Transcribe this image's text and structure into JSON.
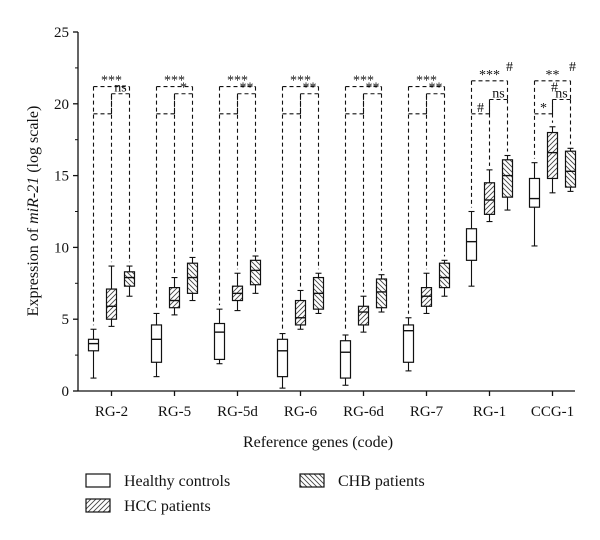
{
  "chart_data": {
    "type": "box",
    "xlabel": "Reference genes (code)",
    "ylabel_prefix": "Expression of ",
    "ylabel_italic": "miR-21",
    "ylabel_suffix": " (log scale)",
    "ylim": [
      0,
      25
    ],
    "yticks": [
      "0",
      "5",
      "10",
      "15",
      "20",
      "25"
    ],
    "categories": [
      "RG-2",
      "RG-5",
      "RG-5d",
      "RG-6",
      "RG-6d",
      "RG-7",
      "RG-1",
      "CCG-1"
    ],
    "series": [
      {
        "name": "Healthy controls",
        "pattern": "none",
        "boxes": [
          {
            "min": 0.9,
            "q1": 2.8,
            "median": 3.3,
            "q3": 3.6,
            "max": 4.3
          },
          {
            "min": 1.0,
            "q1": 2.0,
            "median": 3.6,
            "q3": 4.6,
            "max": 5.4
          },
          {
            "min": 1.9,
            "q1": 2.2,
            "median": 4.1,
            "q3": 4.7,
            "max": 5.7
          },
          {
            "min": 0.2,
            "q1": 1.0,
            "median": 2.8,
            "q3": 3.6,
            "max": 4.0
          },
          {
            "min": 0.4,
            "q1": 0.9,
            "median": 2.7,
            "q3": 3.5,
            "max": 3.9
          },
          {
            "min": 1.4,
            "q1": 2.0,
            "median": 4.2,
            "q3": 4.6,
            "max": 5.1
          },
          {
            "min": 7.3,
            "q1": 9.1,
            "median": 10.4,
            "q3": 11.3,
            "max": 12.5
          },
          {
            "min": 10.1,
            "q1": 12.8,
            "median": 13.4,
            "q3": 14.8,
            "max": 15.9
          }
        ]
      },
      {
        "name": "HCC patients",
        "pattern": "diag-left",
        "boxes": [
          {
            "min": 4.5,
            "q1": 5.0,
            "median": 5.9,
            "q3": 7.1,
            "max": 8.7
          },
          {
            "min": 5.3,
            "q1": 5.8,
            "median": 6.3,
            "q3": 7.2,
            "max": 7.9
          },
          {
            "min": 5.6,
            "q1": 6.3,
            "median": 6.8,
            "q3": 7.3,
            "max": 8.2
          },
          {
            "min": 4.3,
            "q1": 4.6,
            "median": 5.1,
            "q3": 6.3,
            "max": 7.0
          },
          {
            "min": 4.1,
            "q1": 4.6,
            "median": 5.5,
            "q3": 5.9,
            "max": 6.6
          },
          {
            "min": 5.4,
            "q1": 5.9,
            "median": 6.6,
            "q3": 7.2,
            "max": 8.2
          },
          {
            "min": 11.8,
            "q1": 12.3,
            "median": 13.3,
            "q3": 14.5,
            "max": 15.4
          },
          {
            "min": 13.8,
            "q1": 14.8,
            "median": 16.6,
            "q3": 18.0,
            "max": 18.4
          }
        ]
      },
      {
        "name": "CHB patients",
        "pattern": "diag-right",
        "boxes": [
          {
            "min": 6.6,
            "q1": 7.3,
            "median": 7.9,
            "q3": 8.3,
            "max": 8.7
          },
          {
            "min": 6.3,
            "q1": 6.8,
            "median": 7.9,
            "q3": 8.9,
            "max": 9.3
          },
          {
            "min": 6.8,
            "q1": 7.4,
            "median": 8.4,
            "q3": 9.1,
            "max": 9.4
          },
          {
            "min": 5.4,
            "q1": 5.7,
            "median": 6.8,
            "q3": 7.9,
            "max": 8.2
          },
          {
            "min": 5.5,
            "q1": 5.8,
            "median": 6.9,
            "q3": 7.8,
            "max": 8.1
          },
          {
            "min": 6.6,
            "q1": 7.2,
            "median": 7.9,
            "q3": 8.9,
            "max": 9.1
          },
          {
            "min": 12.6,
            "q1": 13.5,
            "median": 15.0,
            "q3": 16.1,
            "max": 16.4
          },
          {
            "min": 13.9,
            "q1": 14.2,
            "median": 15.3,
            "q3": 16.7,
            "max": 16.9
          }
        ]
      }
    ],
    "significance": [
      {
        "outer": "***",
        "inner": "ns",
        "mid": "",
        "hash_outer": "",
        "hash_inner": ""
      },
      {
        "outer": "***",
        "inner": "*",
        "mid": "",
        "hash_outer": "",
        "hash_inner": ""
      },
      {
        "outer": "***",
        "inner": "**",
        "mid": "",
        "hash_outer": "",
        "hash_inner": ""
      },
      {
        "outer": "***",
        "inner": "**",
        "mid": "",
        "hash_outer": "",
        "hash_inner": ""
      },
      {
        "outer": "***",
        "inner": "**",
        "mid": "",
        "hash_outer": "",
        "hash_inner": ""
      },
      {
        "outer": "***",
        "inner": "**",
        "mid": "",
        "hash_outer": "",
        "hash_inner": ""
      },
      {
        "outer": "***",
        "inner": "ns",
        "mid": "#",
        "hash_outer": "#",
        "hash_inner": ""
      },
      {
        "outer": "**",
        "inner": "ns",
        "mid": "*",
        "hash_outer": "#",
        "hash_inner": "#"
      }
    ],
    "legend": {
      "placement": "bottom"
    }
  }
}
